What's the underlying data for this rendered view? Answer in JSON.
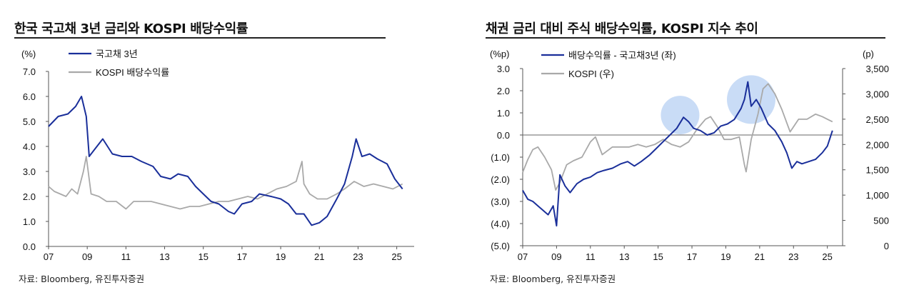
{
  "colors": {
    "navy": "#1a2f9a",
    "gray": "#a9a9a9",
    "bubble": "#bcd3f4",
    "axis": "#555555",
    "zero": "#666666"
  },
  "left": {
    "title": "한국 국고채 3년 금리와 KOSPI 배당수익률",
    "source": "자료: Bloomberg, 유진투자증권"
  },
  "right": {
    "title": "채권 금리 대비 주식 배당수익률, KOSPI 지수 추이",
    "source": "자료: Bloomberg, 유진투자증권"
  },
  "chart_data": [
    {
      "type": "line",
      "title": "한국 국고채 3년 금리와 KOSPI 배당수익률",
      "y_unit": "(%)",
      "ylim": [
        0,
        7
      ],
      "yticks": [
        "7.0",
        "6.0",
        "5.0",
        "4.0",
        "3.0",
        "2.0",
        "1.0",
        "0.0"
      ],
      "xlim": [
        2007,
        2025.9
      ],
      "xticks": [
        "07",
        "09",
        "11",
        "13",
        "15",
        "17",
        "19",
        "21",
        "23",
        "25"
      ],
      "legend_placement": "top-left",
      "series": [
        {
          "name": "국고채 3년",
          "color": "navy",
          "x": [
            2007.0,
            2007.5,
            2008.0,
            2008.4,
            2008.7,
            2008.95,
            2009.1,
            2009.4,
            2009.8,
            2010.3,
            2010.8,
            2011.3,
            2011.8,
            2012.4,
            2012.8,
            2013.3,
            2013.7,
            2014.2,
            2014.6,
            2015.0,
            2015.4,
            2015.8,
            2016.3,
            2016.6,
            2017.0,
            2017.5,
            2017.9,
            2018.5,
            2019.0,
            2019.4,
            2019.8,
            2020.2,
            2020.6,
            2021.0,
            2021.4,
            2021.9,
            2022.3,
            2022.7,
            2022.9,
            2023.2,
            2023.6,
            2024.0,
            2024.5,
            2024.9,
            2025.3
          ],
          "values": [
            4.8,
            5.2,
            5.3,
            5.6,
            6.0,
            5.2,
            3.6,
            3.9,
            4.3,
            3.7,
            3.6,
            3.6,
            3.4,
            3.2,
            2.8,
            2.7,
            2.9,
            2.8,
            2.4,
            2.1,
            1.8,
            1.7,
            1.4,
            1.3,
            1.7,
            1.8,
            2.1,
            2.0,
            1.9,
            1.7,
            1.3,
            1.3,
            0.85,
            0.95,
            1.2,
            1.9,
            2.5,
            3.6,
            4.3,
            3.6,
            3.7,
            3.5,
            3.3,
            2.7,
            2.3
          ]
        },
        {
          "name": "KOSPI 배당수익률",
          "color": "gray",
          "x": [
            2007.0,
            2007.3,
            2007.6,
            2007.9,
            2008.2,
            2008.5,
            2008.8,
            2008.95,
            2009.2,
            2009.6,
            2010.0,
            2010.5,
            2011.0,
            2011.4,
            2011.8,
            2012.3,
            2012.8,
            2013.3,
            2013.8,
            2014.3,
            2014.8,
            2015.3,
            2015.8,
            2016.3,
            2016.8,
            2017.3,
            2017.8,
            2018.3,
            2018.8,
            2019.3,
            2019.8,
            2020.1,
            2020.2,
            2020.5,
            2020.9,
            2021.4,
            2021.9,
            2022.3,
            2022.8,
            2023.3,
            2023.8,
            2024.3,
            2024.8,
            2025.3
          ],
          "values": [
            2.4,
            2.2,
            2.1,
            2.0,
            2.3,
            2.1,
            3.0,
            3.6,
            2.1,
            2.0,
            1.8,
            1.8,
            1.5,
            1.8,
            1.8,
            1.8,
            1.7,
            1.6,
            1.5,
            1.6,
            1.6,
            1.7,
            1.8,
            1.8,
            1.9,
            2.0,
            1.9,
            2.1,
            2.3,
            2.4,
            2.6,
            3.4,
            2.5,
            2.1,
            1.9,
            1.9,
            2.1,
            2.3,
            2.6,
            2.4,
            2.5,
            2.4,
            2.3,
            2.5
          ]
        }
      ]
    },
    {
      "type": "line",
      "title": "채권 금리 대비 주식 배당수익률, KOSPI 지수 추이",
      "y_unit_left": "(%p)",
      "y_unit_right": "(p)",
      "ylim_left": [
        -5,
        3
      ],
      "ylim_right": [
        0,
        3500
      ],
      "yticks_left": [
        "3.0",
        "2.0",
        "1.0",
        "0.0",
        "(1.0)",
        "(2.0)",
        "(3.0)",
        "(4.0)",
        "(5.0)"
      ],
      "yticks_right": [
        "3,500",
        "3,000",
        "2,500",
        "2,000",
        "1,500",
        "1,000",
        "500",
        "0"
      ],
      "xlim": [
        2007,
        2025.9
      ],
      "xticks": [
        "07",
        "09",
        "11",
        "13",
        "15",
        "17",
        "19",
        "21",
        "23",
        "25"
      ],
      "legend_placement": "top-left",
      "highlights": [
        {
          "x": 2016.3,
          "y": 0.9
        },
        {
          "x": 2020.5,
          "y": 1.6
        }
      ],
      "series": [
        {
          "name": "배당수익률 - 국고채3년 (좌)",
          "color": "navy",
          "axis": "left",
          "x": [
            2007.0,
            2007.3,
            2007.6,
            2007.9,
            2008.2,
            2008.5,
            2008.8,
            2009.0,
            2009.2,
            2009.5,
            2009.8,
            2010.2,
            2010.6,
            2011.0,
            2011.4,
            2011.8,
            2012.3,
            2012.8,
            2013.2,
            2013.6,
            2014.0,
            2014.5,
            2014.9,
            2015.3,
            2015.7,
            2016.1,
            2016.5,
            2016.8,
            2017.1,
            2017.5,
            2017.9,
            2018.3,
            2018.7,
            2019.1,
            2019.5,
            2019.9,
            2020.1,
            2020.3,
            2020.5,
            2020.8,
            2021.1,
            2021.5,
            2021.9,
            2022.3,
            2022.6,
            2022.9,
            2023.2,
            2023.5,
            2023.9,
            2024.3,
            2024.7,
            2025.0,
            2025.3
          ],
          "values": [
            -2.5,
            -2.9,
            -3.0,
            -3.2,
            -3.4,
            -3.6,
            -3.2,
            -4.1,
            -1.8,
            -2.3,
            -2.6,
            -2.2,
            -2.0,
            -1.9,
            -1.7,
            -1.6,
            -1.5,
            -1.3,
            -1.2,
            -1.4,
            -1.2,
            -0.9,
            -0.6,
            -0.3,
            0.0,
            0.3,
            0.8,
            0.6,
            0.3,
            0.2,
            0.0,
            0.1,
            0.4,
            0.5,
            0.7,
            1.2,
            1.6,
            2.4,
            1.3,
            1.6,
            1.2,
            0.5,
            0.2,
            -0.3,
            -0.8,
            -1.5,
            -1.2,
            -1.3,
            -1.2,
            -1.1,
            -0.8,
            -0.5,
            0.2
          ]
        },
        {
          "name": "KOSPI (우)",
          "color": "gray",
          "axis": "right",
          "x": [
            2007.0,
            2007.3,
            2007.6,
            2007.9,
            2008.3,
            2008.7,
            2008.95,
            2009.2,
            2009.6,
            2010.0,
            2010.5,
            2011.0,
            2011.3,
            2011.7,
            2012.3,
            2012.8,
            2013.3,
            2013.8,
            2014.3,
            2014.8,
            2015.3,
            2015.8,
            2016.3,
            2016.8,
            2017.3,
            2017.8,
            2018.1,
            2018.5,
            2018.9,
            2019.3,
            2019.8,
            2020.1,
            2020.2,
            2020.5,
            2020.9,
            2021.2,
            2021.5,
            2021.9,
            2022.3,
            2022.8,
            2023.3,
            2023.8,
            2024.3,
            2024.7,
            2025.0,
            2025.3
          ],
          "values": [
            1450,
            1700,
            1900,
            1950,
            1750,
            1500,
            1100,
            1250,
            1600,
            1680,
            1750,
            2050,
            2150,
            1800,
            1950,
            1950,
            1950,
            2000,
            1950,
            2000,
            2100,
            2000,
            1950,
            2050,
            2300,
            2500,
            2550,
            2350,
            2100,
            2100,
            2150,
            1600,
            1460,
            2100,
            2600,
            3100,
            3200,
            3000,
            2700,
            2250,
            2500,
            2500,
            2600,
            2550,
            2500,
            2450
          ]
        }
      ]
    }
  ]
}
